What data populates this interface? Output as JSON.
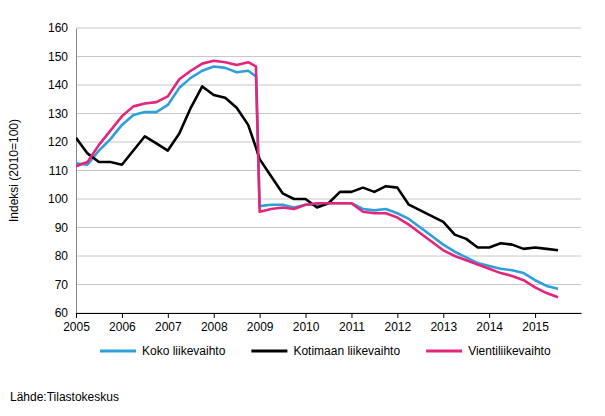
{
  "chart_data": {
    "type": "line",
    "y_label": "Indeksi (2010=100)",
    "source": "Lähde:Tilastokeskus",
    "x": [
      2005,
      2005.25,
      2005.5,
      2005.75,
      2006,
      2006.25,
      2006.5,
      2006.75,
      2007,
      2007.25,
      2007.5,
      2007.75,
      2008,
      2008.25,
      2008.5,
      2008.75,
      2008.92,
      2009,
      2009.25,
      2009.5,
      2009.75,
      2010,
      2010.25,
      2010.5,
      2010.75,
      2011,
      2011.25,
      2011.5,
      2011.75,
      2012,
      2012.25,
      2012.5,
      2012.75,
      2013,
      2013.25,
      2013.5,
      2013.75,
      2014,
      2014.25,
      2014.5,
      2014.75,
      2015,
      2015.25,
      2015.5
    ],
    "series": [
      {
        "name": "Koko liikevaihto",
        "color": "#2e9fdb",
        "values": [
          112.5,
          112,
          117,
          121,
          126,
          129.5,
          130.5,
          130.5,
          133,
          139,
          142.5,
          145,
          146.5,
          146,
          144.5,
          145,
          143,
          97.5,
          98,
          98,
          97,
          98,
          98,
          98.5,
          98.5,
          98.5,
          96.5,
          96,
          96.5,
          95,
          93,
          90,
          87,
          84,
          81.5,
          79.5,
          77.5,
          76.5,
          75.5,
          75,
          74,
          71.5,
          69.5,
          68.5
        ]
      },
      {
        "name": "Kotimaan liikevaihto",
        "color": "#000000",
        "values": [
          121.5,
          116,
          113,
          113,
          112,
          117,
          122,
          119.5,
          117,
          123,
          132,
          139.5,
          136.5,
          135.5,
          132,
          126,
          118,
          114,
          108,
          102,
          100,
          100,
          97,
          98.5,
          102.5,
          102.5,
          104,
          102.5,
          104.5,
          104,
          98,
          96,
          94,
          92,
          87.5,
          86,
          83,
          83,
          84.5,
          84,
          82.5,
          83,
          82.5,
          82
        ]
      },
      {
        "name": "Vientiliikevaihto",
        "color": "#e3267b",
        "values": [
          111.5,
          113,
          119,
          124,
          129,
          132.5,
          133.5,
          134,
          136,
          142,
          145,
          147.5,
          148.5,
          148,
          147,
          148,
          146.5,
          95.5,
          96.5,
          97,
          96.5,
          98,
          98.5,
          98.5,
          98.5,
          98.5,
          95.5,
          95,
          95,
          93.5,
          91,
          88,
          85,
          82,
          80,
          78.5,
          77,
          75.5,
          74,
          73,
          71.5,
          69,
          67,
          65.5
        ]
      }
    ],
    "xlim": [
      2005,
      2016
    ],
    "xticks": [
      2005,
      2006,
      2007,
      2008,
      2009,
      2010,
      2011,
      2012,
      2013,
      2014,
      2015
    ],
    "ylim": [
      60,
      160
    ],
    "yticks": [
      60,
      70,
      80,
      90,
      100,
      110,
      120,
      130,
      140,
      150,
      160
    ],
    "grid": true,
    "legend": "bottom"
  }
}
